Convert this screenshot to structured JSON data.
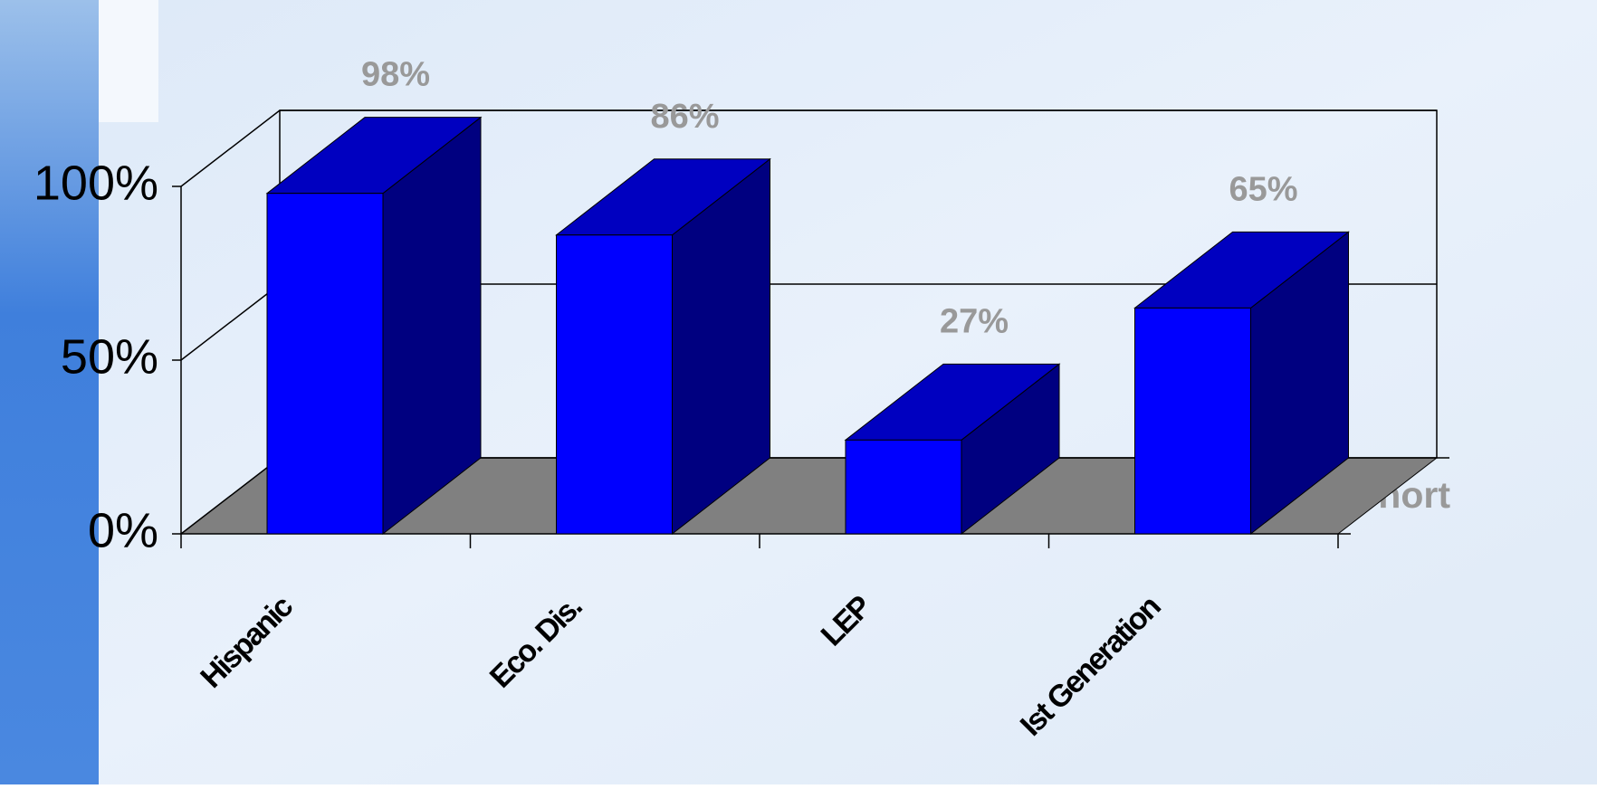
{
  "chart_data": {
    "type": "bar3d",
    "categories": [
      "Hispanic",
      "Eco. Dis.",
      "LEP",
      "Ist Generation"
    ],
    "series": [
      {
        "name": "Cohort",
        "color": "#0000ff",
        "values": [
          98,
          86,
          27,
          65
        ],
        "value_labels": [
          "98%",
          "86%",
          "27%",
          "65%"
        ]
      }
    ],
    "ylim": [
      0,
      100
    ],
    "yticks": [
      {
        "value": 0,
        "label": "0%"
      },
      {
        "value": 50,
        "label": "50%"
      },
      {
        "value": 100,
        "label": "100%"
      }
    ],
    "grid": true
  }
}
